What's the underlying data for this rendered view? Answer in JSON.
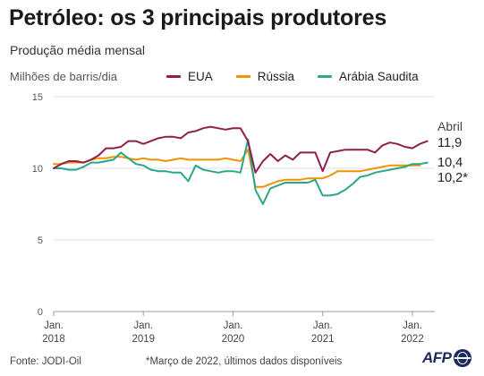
{
  "header": {
    "title": "Petróleo: os 3 principais produtores",
    "subtitle": "Produção média mensal"
  },
  "footer": {
    "source": "Fonte: JODI-Oil",
    "footnote": "*Março de 2022, últimos dados disponíveis",
    "logo": "AFP"
  },
  "chart_data": {
    "type": "line",
    "ylabel": "Milhões de barris/dia",
    "ylim": [
      0,
      15
    ],
    "yticks": [
      0,
      5,
      10,
      15
    ],
    "ytick_labels": [
      "0",
      "5",
      "10",
      "15"
    ],
    "x_start": "2018-01",
    "x_end": "2022-04",
    "xticks": [
      {
        "x": "2018-01",
        "label1": "Jan.",
        "label2": "2018"
      },
      {
        "x": "2019-01",
        "label1": "Jan.",
        "label2": "2019"
      },
      {
        "x": "2020-01",
        "label1": "Jan.",
        "label2": "2020"
      },
      {
        "x": "2021-01",
        "label1": "Jan.",
        "label2": "2021"
      },
      {
        "x": "2022-01",
        "label1": "Jan.",
        "label2": "2022"
      }
    ],
    "grid": "horizontal",
    "legend_position": "top",
    "series": [
      {
        "name": "EUA",
        "color": "#8e1f4f",
        "start": "2018-01",
        "values": [
          10.0,
          10.3,
          10.5,
          10.5,
          10.4,
          10.6,
          10.9,
          11.4,
          11.4,
          11.5,
          11.9,
          11.9,
          11.7,
          11.9,
          12.1,
          12.2,
          12.2,
          12.1,
          12.5,
          12.6,
          12.8,
          12.9,
          12.8,
          12.7,
          12.8,
          12.8,
          11.9,
          9.7,
          10.5,
          11.0,
          10.5,
          10.9,
          10.6,
          11.1,
          11.1,
          11.1,
          9.8,
          11.1,
          11.2,
          11.3,
          11.3,
          11.3,
          11.3,
          11.1,
          11.6,
          11.8,
          11.7,
          11.5,
          11.4,
          11.7,
          11.9
        ],
        "end_label": "11,9",
        "end_label_prefix": "Abril"
      },
      {
        "name": "Rússia",
        "color": "#f29100",
        "start": "2018-01",
        "values": [
          10.3,
          10.3,
          10.4,
          10.4,
          10.4,
          10.6,
          10.7,
          10.7,
          10.8,
          10.8,
          10.7,
          10.6,
          10.7,
          10.6,
          10.6,
          10.5,
          10.6,
          10.7,
          10.6,
          10.6,
          10.6,
          10.6,
          10.6,
          10.7,
          10.6,
          10.5,
          11.3,
          8.7,
          8.7,
          8.9,
          9.1,
          9.2,
          9.2,
          9.2,
          9.3,
          9.3,
          9.3,
          9.5,
          9.8,
          9.8,
          9.8,
          9.8,
          9.9,
          10.0,
          10.1,
          10.2,
          10.2,
          10.2,
          10.2,
          10.2
        ],
        "end_label": "10,2*"
      },
      {
        "name": "Arábia Saudita",
        "color": "#2aa68a",
        "start": "2018-01",
        "values": [
          10.0,
          10.0,
          9.9,
          9.9,
          10.1,
          10.4,
          10.4,
          10.5,
          10.6,
          11.1,
          10.7,
          10.3,
          10.2,
          9.9,
          9.8,
          9.8,
          9.7,
          9.7,
          9.1,
          10.2,
          9.9,
          9.8,
          9.7,
          9.8,
          9.8,
          9.7,
          12.0,
          8.5,
          7.5,
          8.6,
          8.8,
          9.0,
          9.0,
          9.0,
          9.0,
          9.2,
          8.1,
          8.1,
          8.2,
          8.5,
          8.9,
          9.4,
          9.5,
          9.7,
          9.8,
          9.9,
          10.0,
          10.1,
          10.3,
          10.3,
          10.4
        ],
        "end_label": "10,4"
      }
    ]
  }
}
